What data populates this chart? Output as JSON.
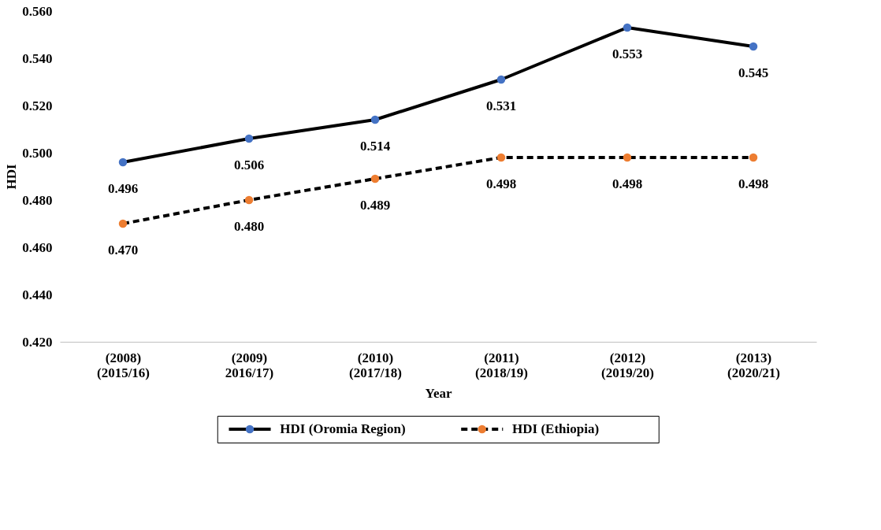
{
  "chart_data": {
    "type": "line",
    "xlabel": "Year",
    "ylabel": "HDI",
    "categories": [
      "(2008)\n(2015/16)",
      "(2009)\n2016/17)",
      "(2010)\n(2017/18)",
      "(2011)\n(2018/19)",
      "(2012)\n(2019/20)",
      "(2013)\n(2020/21)"
    ],
    "series": [
      {
        "name": "HDI (Oromia Region)",
        "color": "#4472c4",
        "line_style": "solid",
        "values": [
          0.496,
          0.506,
          0.514,
          0.531,
          0.553,
          0.545
        ],
        "value_labels": [
          "0.496",
          "0.506",
          "0.514",
          "0.531",
          "0.553",
          "0.545"
        ]
      },
      {
        "name": "HDI (Ethiopia)",
        "color": "#ed7d31",
        "line_style": "dashed",
        "values": [
          0.47,
          0.48,
          0.489,
          0.498,
          0.498,
          0.498
        ],
        "value_labels": [
          "0.470",
          "0.480",
          "0.489",
          "0.498",
          "0.498",
          "0.498"
        ]
      }
    ],
    "ylim": [
      0.42,
      0.56
    ],
    "yticks": [
      {
        "value": 0.42,
        "label": "0.420"
      },
      {
        "value": 0.44,
        "label": "0.440"
      },
      {
        "value": 0.46,
        "label": "0.460"
      },
      {
        "value": 0.48,
        "label": "0.480"
      },
      {
        "value": 0.5,
        "label": "0.500"
      },
      {
        "value": 0.52,
        "label": "0.520"
      },
      {
        "value": 0.54,
        "label": "0.540"
      },
      {
        "value": 0.56,
        "label": "0.560"
      }
    ],
    "marker": "circle",
    "legend": "bottom",
    "grid": false
  }
}
